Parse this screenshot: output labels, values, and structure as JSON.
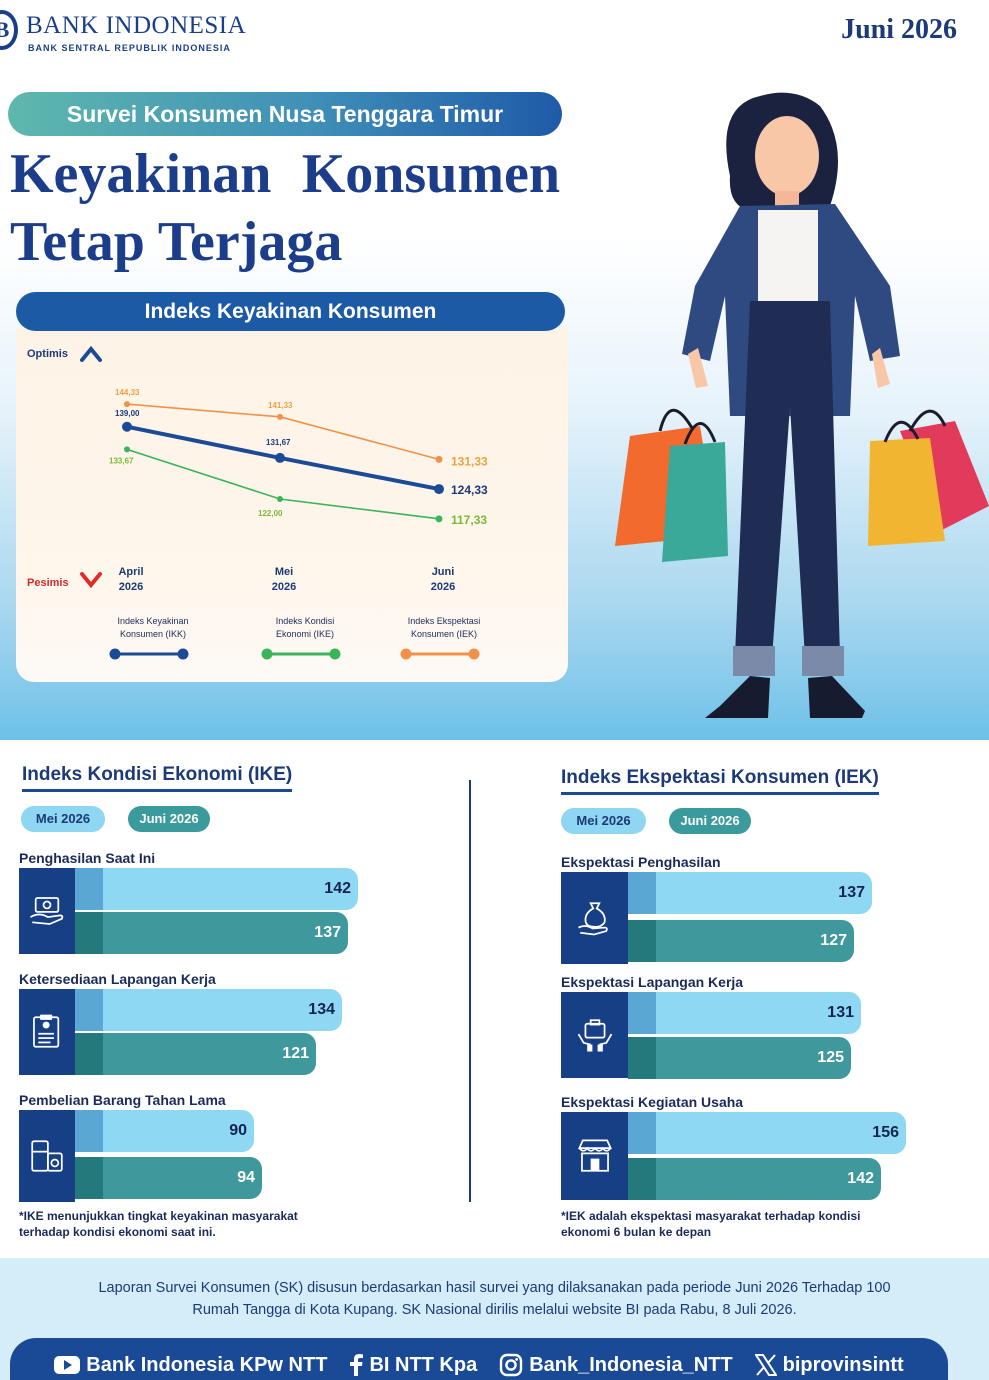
{
  "header": {
    "logo_name": "BANK INDONESIA",
    "logo_subtitle": "BANK SENTRAL REPUBLIK INDONESIA",
    "period": "Juni 2026"
  },
  "hero": {
    "survey_label": "Survei Konsumen Nusa Tenggara Timur",
    "headline_word1": "Keyakinan",
    "headline_word2": "Konsumen",
    "headline_line2": "Tetap Terjaga",
    "chart_heading": "Indeks Keyakinan Konsumen"
  },
  "chart_data": {
    "type": "line",
    "title": "Indeks Keyakinan Konsumen",
    "axis_top_label": "Optimis",
    "axis_bottom_label": "Pesimis",
    "categories": [
      {
        "month": "April",
        "year": "2026"
      },
      {
        "month": "Mei",
        "year": "2026"
      },
      {
        "month": "Juni",
        "year": "2026"
      }
    ],
    "series": [
      {
        "key": "iek",
        "name": "Indeks Ekspektasi Konsumen (IEK)",
        "name_line1": "Indeks Ekspektasi",
        "name_line2": "Konsumen (IEK)",
        "color": "#f2924a",
        "label_color": "#e9a344",
        "values": [
          144.33,
          141.33,
          131.33
        ],
        "labels": [
          "144,33",
          "141,33",
          "131,33"
        ]
      },
      {
        "key": "ikk",
        "name": "Indeks Keyakinan Konsumen (IKK)",
        "name_line1": "Indeks Keyakinan",
        "name_line2": "Konsumen (IKK)",
        "color": "#1c4b96",
        "label_color": "#1c3a78",
        "values": [
          139.0,
          131.67,
          124.33
        ],
        "labels": [
          "139,00",
          "131,67",
          "124,33"
        ]
      },
      {
        "key": "ike",
        "name": "Indeks Kondisi Ekonomi (IKE)",
        "name_line1": "Indeks Kondisi",
        "name_line2": "Ekonomi (IKE)",
        "color": "#3cb55a",
        "label_color": "#7bb83a",
        "values": [
          133.67,
          122.0,
          117.33
        ],
        "labels": [
          "133,67",
          "122,00",
          "117,33"
        ]
      }
    ],
    "legend_order": [
      "ikk",
      "ike",
      "iek"
    ],
    "ylim": [
      110,
      150
    ],
    "grid": false,
    "legend_position": "bottom"
  },
  "ike_section": {
    "title": "Indeks Kondisi Ekonomi (IKE)",
    "legend": {
      "may": "Mei 2026",
      "june": "Juni 2026"
    },
    "items": [
      {
        "label": "Penghasilan Saat Ini",
        "icon": "money-hand-icon",
        "may": 142,
        "june": 137
      },
      {
        "label": "Ketersediaan Lapangan Kerja",
        "icon": "clipboard-person-icon",
        "may": 134,
        "june": 121
      },
      {
        "label": "Pembelian Barang Tahan Lama",
        "icon": "appliances-icon",
        "may": 90,
        "june": 94
      }
    ],
    "footnote_line1": "*IKE menunjukkan tingkat keyakinan masyarakat",
    "footnote_line2": "terhadap kondisi ekonomi saat ini."
  },
  "iek_section": {
    "title": "Indeks Ekspektasi Konsumen (IEK)",
    "legend": {
      "may": "Mei 2026",
      "june": "Juni 2026"
    },
    "items": [
      {
        "label": "Ekspektasi Penghasilan",
        "icon": "money-bag-hand-icon",
        "may": 137,
        "june": 127
      },
      {
        "label": "Ekspektasi Lapangan Kerja",
        "icon": "briefcase-hands-icon",
        "may": 131,
        "june": 125
      },
      {
        "label": "Ekspektasi Kegiatan Usaha",
        "icon": "shop-icon",
        "may": 156,
        "june": 142
      }
    ],
    "footnote_line1": "*IEK adalah ekspektasi masyarakat terhadap kondisi",
    "footnote_line2": "ekonomi 6 bulan ke depan"
  },
  "report": {
    "line1": "Laporan Survei Konsumen (SK) disusun berdasarkan hasil survei yang dilaksanakan pada periode Juni 2026 Terhadap 100",
    "line2": "Rumah Tangga di Kota Kupang. SK Nasional dirilis melalui website BI pada Rabu, 8 Juli 2026."
  },
  "social": [
    {
      "icon": "youtube-icon",
      "handle": "Bank Indonesia KPw NTT"
    },
    {
      "icon": "facebook-icon",
      "handle": "BI NTT Kpa"
    },
    {
      "icon": "instagram-icon",
      "handle": "Bank_Indonesia_NTT"
    },
    {
      "icon": "x-icon",
      "handle": "biprovinsintt"
    }
  ],
  "colors": {
    "brand_navy": "#1c3a78",
    "pill_may": "#8ed6f2",
    "pill_june": "#3b9a9c",
    "footer_blue": "#1a4a96"
  }
}
